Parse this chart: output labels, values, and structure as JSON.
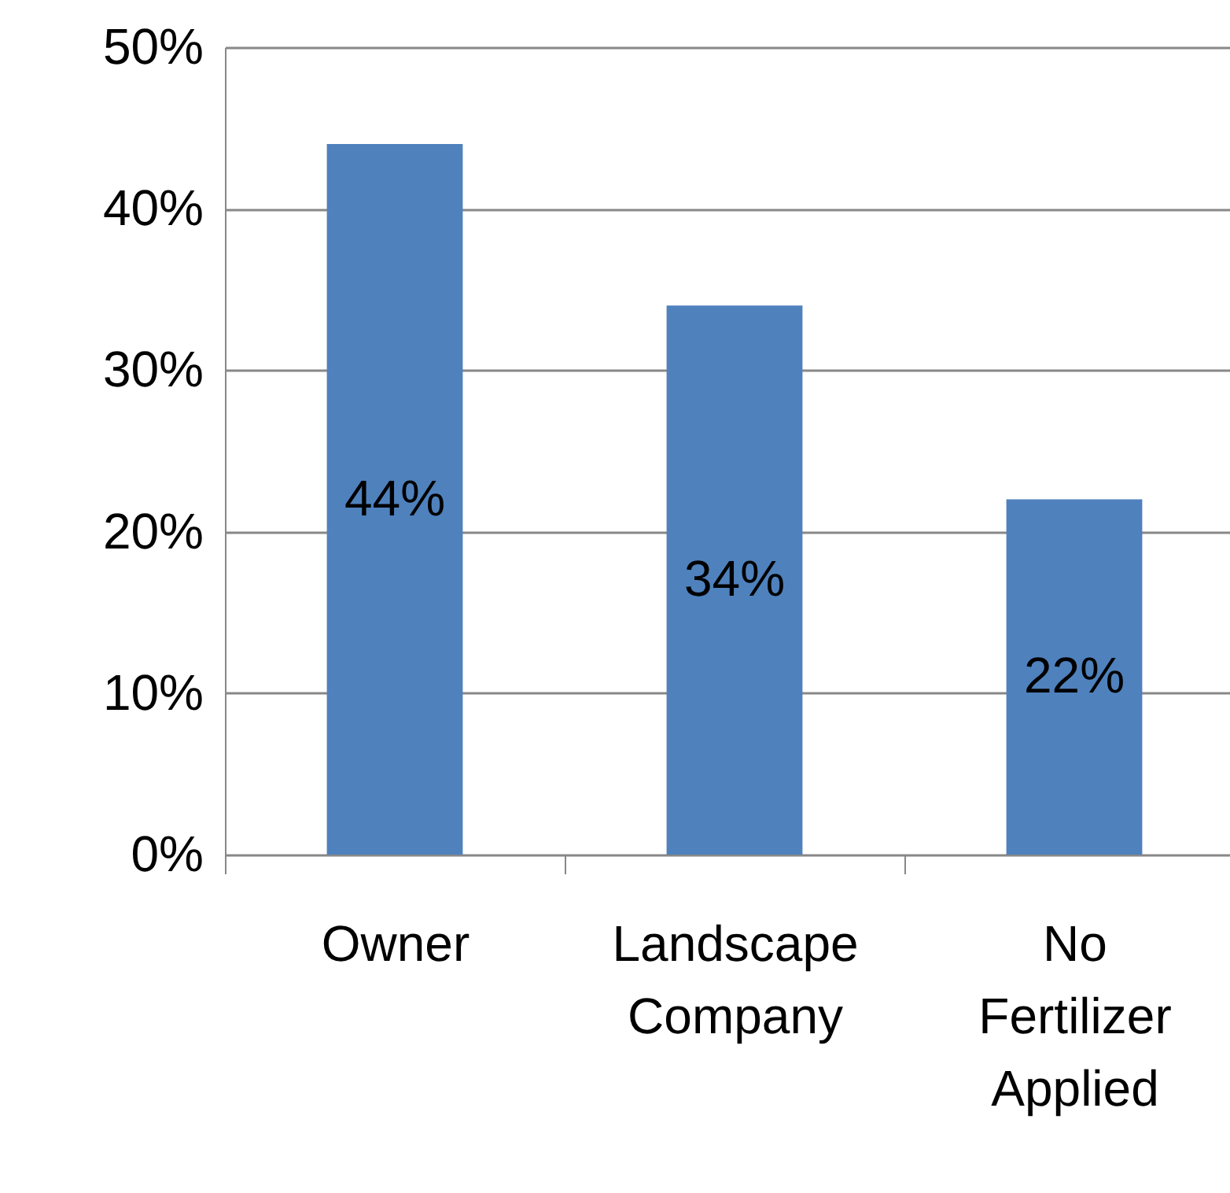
{
  "chart_data": {
    "type": "bar",
    "categories": [
      "Owner",
      "Landscape Company",
      "No Fertilizer Applied"
    ],
    "values": [
      44,
      34,
      22
    ],
    "value_labels": [
      "44%",
      "34%",
      "22%"
    ],
    "color": "#4f81bd",
    "ylim": [
      0,
      50
    ],
    "yticks": [
      {
        "value": 0,
        "label": "0%"
      },
      {
        "value": 10,
        "label": "10%"
      },
      {
        "value": 20,
        "label": "20%"
      },
      {
        "value": 30,
        "label": "30%"
      },
      {
        "value": 40,
        "label": "40%"
      },
      {
        "value": 50,
        "label": "50%"
      }
    ],
    "grid": "y"
  }
}
